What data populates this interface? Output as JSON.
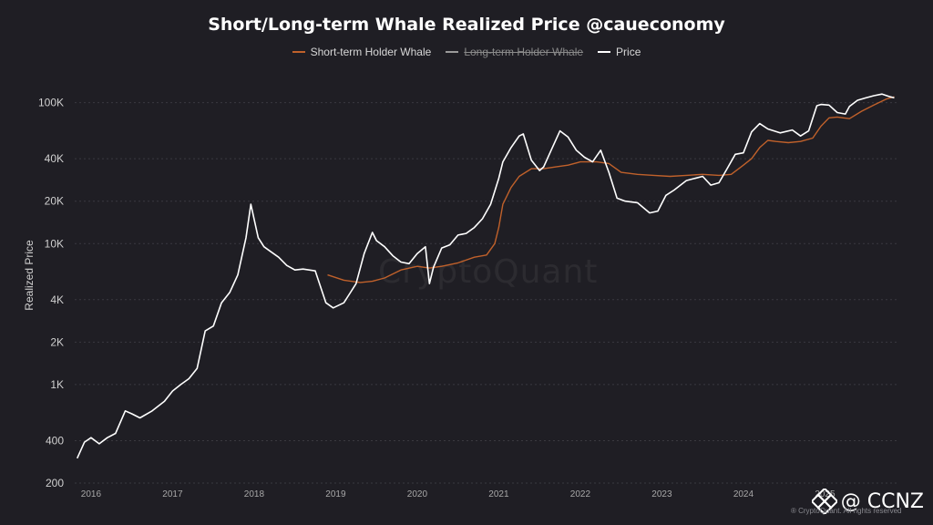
{
  "watermark": "CryptoQuant",
  "footnote": "® CryptoQuant. All rights reserved",
  "attribution": "@ CCNZ",
  "colors": {
    "background": "#1f1e24",
    "short_term": "#c0612b",
    "long_term": "#9a9a9a",
    "price": "#ffffff"
  },
  "chart_data": {
    "type": "line",
    "title": "Short/Long-term Whale Realized Price @caueconomy",
    "ylabel": "Realized Price",
    "yscale": "log",
    "ylim": [
      200,
      140000
    ],
    "xlim": [
      2015.8,
      2025.9
    ],
    "legend_position": "top-center",
    "grid": true,
    "yticks": [
      {
        "value": 200,
        "label": "200"
      },
      {
        "value": 400,
        "label": "400"
      },
      {
        "value": 1000,
        "label": "1K"
      },
      {
        "value": 2000,
        "label": "2K"
      },
      {
        "value": 4000,
        "label": "4K"
      },
      {
        "value": 10000,
        "label": "10K"
      },
      {
        "value": 20000,
        "label": "20K"
      },
      {
        "value": 40000,
        "label": "40K"
      },
      {
        "value": 100000,
        "label": "100K"
      }
    ],
    "xticks": [
      {
        "value": 2016,
        "label": "2016"
      },
      {
        "value": 2017,
        "label": "2017"
      },
      {
        "value": 2018,
        "label": "2018"
      },
      {
        "value": 2019,
        "label": "2019"
      },
      {
        "value": 2020,
        "label": "2020"
      },
      {
        "value": 2021,
        "label": "2021"
      },
      {
        "value": 2022,
        "label": "2022"
      },
      {
        "value": 2023,
        "label": "2023"
      },
      {
        "value": 2024,
        "label": "2024"
      },
      {
        "value": 2025,
        "label": "2025"
      }
    ],
    "series": [
      {
        "name": "Short-term Holder Whale",
        "color": "#c0612b",
        "visible": true,
        "x": [
          2018.9,
          2019.1,
          2019.3,
          2019.45,
          2019.6,
          2019.8,
          2020.0,
          2020.15,
          2020.3,
          2020.5,
          2020.7,
          2020.85,
          2020.95,
          2021.0,
          2021.05,
          2021.15,
          2021.25,
          2021.4,
          2021.55,
          2021.7,
          2021.85,
          2022.0,
          2022.2,
          2022.35,
          2022.5,
          2022.7,
          2022.9,
          2023.1,
          2023.3,
          2023.5,
          2023.7,
          2023.85,
          2024.0,
          2024.1,
          2024.2,
          2024.3,
          2024.4,
          2024.55,
          2024.7,
          2024.85,
          2024.95,
          2025.05,
          2025.15,
          2025.3,
          2025.45,
          2025.6,
          2025.75,
          2025.85
        ],
        "y": [
          6000,
          5500,
          5300,
          5400,
          5700,
          6500,
          6900,
          6700,
          6900,
          7300,
          8000,
          8300,
          10000,
          13000,
          19000,
          25000,
          30000,
          34000,
          34000,
          35000,
          36000,
          38000,
          38000,
          37000,
          32000,
          31000,
          30500,
          30000,
          30500,
          31000,
          30500,
          31000,
          36000,
          40000,
          48000,
          54000,
          53000,
          52000,
          53000,
          56000,
          68000,
          78000,
          79000,
          77000,
          87000,
          96000,
          106000,
          110000
        ]
      },
      {
        "name": "Long-term Holder Whale",
        "color": "#9a9a9a",
        "visible": false,
        "x": [],
        "y": []
      },
      {
        "name": "Price",
        "color": "#ffffff",
        "visible": true,
        "x": [
          2015.83,
          2015.92,
          2016.0,
          2016.1,
          2016.2,
          2016.3,
          2016.42,
          2016.5,
          2016.6,
          2016.75,
          2016.9,
          2017.0,
          2017.1,
          2017.2,
          2017.3,
          2017.4,
          2017.5,
          2017.6,
          2017.7,
          2017.8,
          2017.9,
          2017.96,
          2018.05,
          2018.12,
          2018.2,
          2018.3,
          2018.4,
          2018.5,
          2018.6,
          2018.75,
          2018.88,
          2018.97,
          2019.1,
          2019.25,
          2019.35,
          2019.45,
          2019.5,
          2019.6,
          2019.7,
          2019.8,
          2019.9,
          2020.0,
          2020.1,
          2020.15,
          2020.2,
          2020.3,
          2020.4,
          2020.5,
          2020.6,
          2020.7,
          2020.8,
          2020.9,
          2021.0,
          2021.05,
          2021.15,
          2021.25,
          2021.3,
          2021.4,
          2021.5,
          2021.55,
          2021.65,
          2021.75,
          2021.85,
          2021.95,
          2022.05,
          2022.15,
          2022.25,
          2022.35,
          2022.45,
          2022.55,
          2022.7,
          2022.85,
          2022.95,
          2023.05,
          2023.15,
          2023.3,
          2023.5,
          2023.6,
          2023.7,
          2023.8,
          2023.9,
          2024.0,
          2024.1,
          2024.2,
          2024.3,
          2024.45,
          2024.6,
          2024.7,
          2024.8,
          2024.9,
          2024.95,
          2025.05,
          2025.15,
          2025.25,
          2025.3,
          2025.4,
          2025.5,
          2025.6,
          2025.7,
          2025.8,
          2025.85
        ],
        "y": [
          300,
          390,
          420,
          380,
          420,
          450,
          650,
          620,
          580,
          650,
          760,
          900,
          1000,
          1100,
          1300,
          2400,
          2600,
          3800,
          4500,
          6000,
          11000,
          19000,
          11000,
          9500,
          8800,
          8000,
          7000,
          6500,
          6600,
          6400,
          3800,
          3500,
          3800,
          5200,
          8500,
          12000,
          10500,
          9500,
          8200,
          7400,
          7200,
          8500,
          9500,
          5200,
          6800,
          9300,
          9800,
          11500,
          11800,
          13000,
          15000,
          19000,
          29000,
          38000,
          48000,
          58000,
          60000,
          39000,
          33000,
          35000,
          47000,
          63000,
          57000,
          46000,
          41000,
          38000,
          46000,
          32000,
          21000,
          20000,
          19500,
          16500,
          17000,
          22000,
          24000,
          28000,
          30000,
          26000,
          27000,
          34000,
          43000,
          44000,
          62000,
          71000,
          65000,
          61000,
          64000,
          58000,
          63000,
          95000,
          97000,
          96000,
          85000,
          83000,
          94000,
          104000,
          108000,
          112000,
          115000,
          110000,
          108000
        ]
      }
    ]
  }
}
